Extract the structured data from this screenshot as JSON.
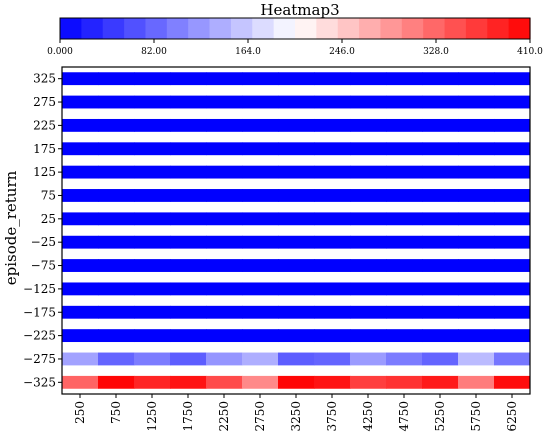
{
  "chart_data": {
    "type": "heatmap",
    "title": "Heatmap3",
    "xlabel": "",
    "ylabel": "episode_return",
    "x": [
      250,
      750,
      1250,
      1750,
      2250,
      2750,
      3250,
      3750,
      4250,
      4750,
      5250,
      5750,
      6250
    ],
    "x_tick_labels": [
      "250",
      "750",
      "1250",
      "1750",
      "2250",
      "2750",
      "3250",
      "3750",
      "4250",
      "4750",
      "5250",
      "5750",
      "6250"
    ],
    "y": [
      325,
      275,
      225,
      175,
      125,
      75,
      25,
      -25,
      -75,
      -125,
      -175,
      -225,
      -275,
      -325
    ],
    "y_tick_labels": [
      "325",
      "275",
      "225",
      "175",
      "125",
      "75",
      "25",
      "−25",
      "−75",
      "−125",
      "−175",
      "−225",
      "−275",
      "−325"
    ],
    "colorbar": {
      "min": 0,
      "max": 410,
      "colormap": "bwr",
      "tick_values": [
        0,
        82,
        164,
        246,
        328,
        410
      ],
      "tick_labels": [
        "0.000",
        "82.00",
        "164.0",
        "246.0",
        "328.0",
        "410.0"
      ]
    },
    "rows": [
      {
        "y": 325,
        "values": [
          0,
          0,
          0,
          0,
          0,
          0,
          0,
          0,
          0,
          0,
          0,
          0,
          0
        ]
      },
      {
        "y": 275,
        "values": [
          0,
          0,
          0,
          0,
          0,
          0,
          0,
          0,
          0,
          0,
          0,
          0,
          0
        ]
      },
      {
        "y": 225,
        "values": [
          0,
          0,
          0,
          0,
          0,
          0,
          0,
          0,
          0,
          0,
          0,
          0,
          0
        ]
      },
      {
        "y": 175,
        "values": [
          0,
          0,
          0,
          0,
          0,
          0,
          0,
          0,
          0,
          0,
          0,
          0,
          0
        ]
      },
      {
        "y": 125,
        "values": [
          0,
          0,
          0,
          0,
          0,
          0,
          0,
          0,
          0,
          0,
          0,
          0,
          0
        ]
      },
      {
        "y": 75,
        "values": [
          0,
          0,
          0,
          0,
          0,
          0,
          0,
          0,
          0,
          0,
          0,
          0,
          0
        ]
      },
      {
        "y": 25,
        "values": [
          0,
          0,
          0,
          0,
          0,
          0,
          0,
          0,
          0,
          0,
          0,
          0,
          0
        ]
      },
      {
        "y": -25,
        "values": [
          0,
          0,
          0,
          0,
          0,
          0,
          0,
          0,
          0,
          0,
          0,
          0,
          0
        ]
      },
      {
        "y": -75,
        "values": [
          0,
          0,
          0,
          0,
          0,
          0,
          0,
          0,
          0,
          0,
          0,
          0,
          0
        ]
      },
      {
        "y": -125,
        "values": [
          0,
          0,
          0,
          0,
          0,
          0,
          0,
          0,
          0,
          0,
          0,
          0,
          0
        ]
      },
      {
        "y": -175,
        "values": [
          0,
          0,
          0,
          0,
          0,
          0,
          0,
          0,
          0,
          0,
          0,
          0,
          0
        ]
      },
      {
        "y": -225,
        "values": [
          0,
          0,
          0,
          0,
          0,
          0,
          0,
          0,
          0,
          0,
          0,
          0,
          0
        ]
      },
      {
        "y": -275,
        "values": [
          130,
          80,
          100,
          75,
          120,
          140,
          75,
          80,
          125,
          100,
          80,
          150,
          95
        ]
      },
      {
        "y": -325,
        "values": [
          330,
          405,
          380,
          395,
          350,
          300,
          405,
          395,
          360,
          370,
          390,
          310,
          400
        ]
      }
    ],
    "row_gap_value": null,
    "grid": false,
    "legend": "colorbar-top"
  }
}
